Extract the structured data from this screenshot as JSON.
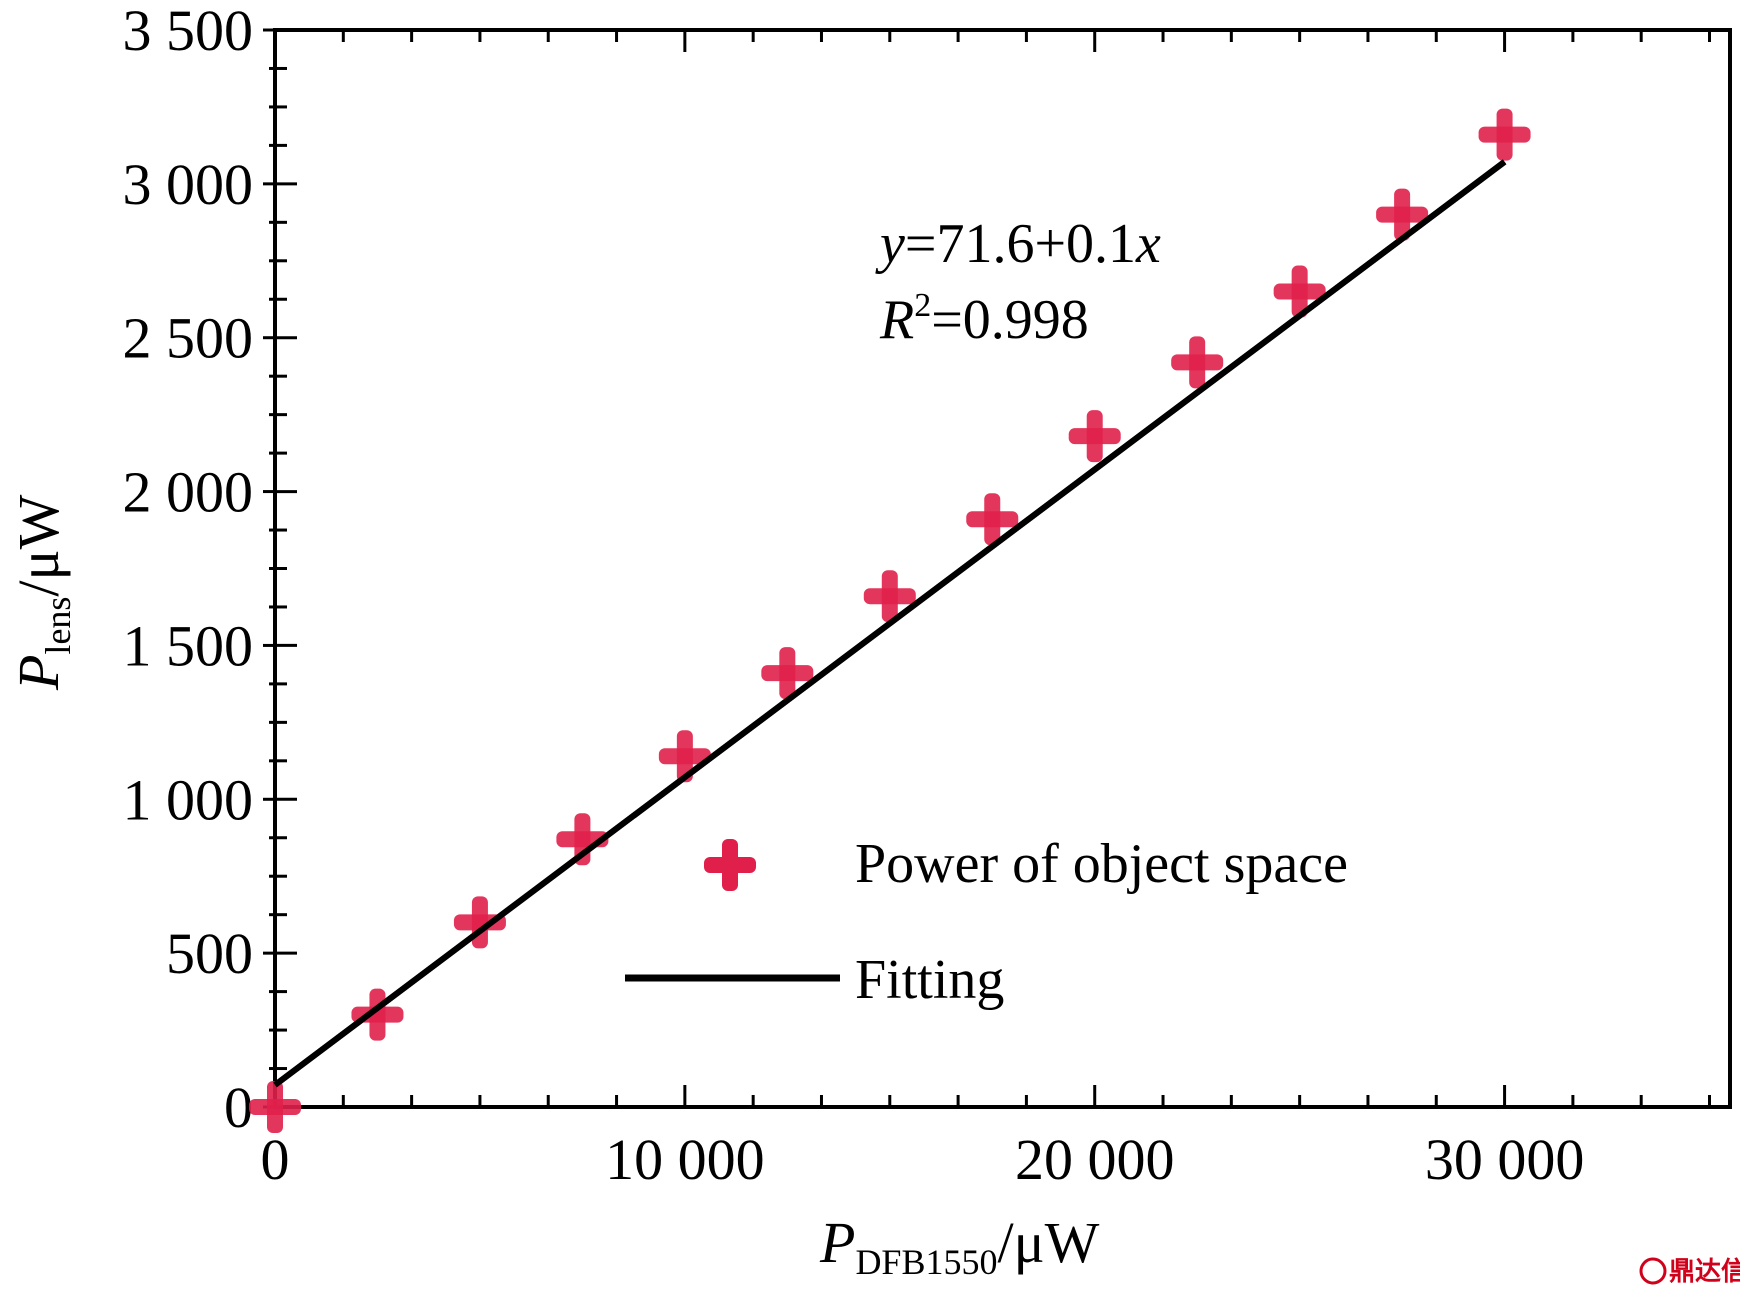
{
  "chart_data": {
    "type": "scatter",
    "xlabel": {
      "main": "P",
      "sub": "DFB1550",
      "unit": "/μW"
    },
    "ylabel": {
      "main": "P",
      "sub": "lens",
      "unit": "/μW"
    },
    "xlim": [
      0,
      35500
    ],
    "ylim": [
      0,
      3500
    ],
    "x_ticks": [
      0,
      10000,
      20000,
      30000
    ],
    "x_tick_labels": [
      "0",
      "10 000",
      "20 000",
      "30 000"
    ],
    "y_ticks": [
      0,
      500,
      1000,
      1500,
      2000,
      2500,
      3000,
      3500
    ],
    "y_tick_labels": [
      "0",
      "500",
      "1 000",
      "1 500",
      "2 000",
      "2 500",
      "3 000",
      "3 500"
    ],
    "series": [
      {
        "name": "Power of object space",
        "marker": "plus",
        "color": "#e0204a",
        "points": [
          {
            "x": 0,
            "y": 0
          },
          {
            "x": 2500,
            "y": 300
          },
          {
            "x": 5000,
            "y": 600
          },
          {
            "x": 7500,
            "y": 870
          },
          {
            "x": 10000,
            "y": 1140
          },
          {
            "x": 12500,
            "y": 1410
          },
          {
            "x": 15000,
            "y": 1660
          },
          {
            "x": 17500,
            "y": 1910
          },
          {
            "x": 20000,
            "y": 2180
          },
          {
            "x": 22500,
            "y": 2420
          },
          {
            "x": 25000,
            "y": 2650
          },
          {
            "x": 27500,
            "y": 2900
          },
          {
            "x": 30000,
            "y": 3160
          }
        ]
      },
      {
        "name": "Fitting",
        "marker": "line",
        "color": "#000000",
        "intercept": 71.6,
        "slope": 0.1,
        "x_range": [
          0,
          30000
        ]
      }
    ],
    "annotation": {
      "eq_y": "y",
      "eq_rest": "=71.6+0.1",
      "eq_x": "x",
      "r_label": "R",
      "r_sup": "2",
      "r_rest": "=0.998"
    },
    "legend": {
      "placement": "bottom-right",
      "items": [
        "Power of object space",
        "Fitting"
      ]
    },
    "grid": false
  },
  "watermark": {
    "text": "鼎达信"
  }
}
